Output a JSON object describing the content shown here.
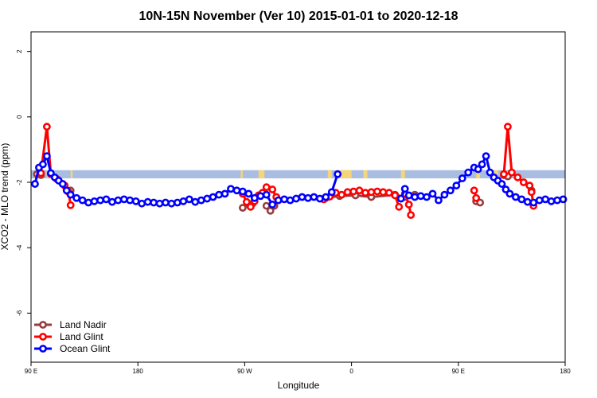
{
  "chart_data": {
    "type": "line",
    "title": "10N-15N November (Ver 10)   2015-01-01 to 2020-12-18",
    "xlabel": "Longitude",
    "ylabel": "XCO2 - MLO trend (ppm)",
    "xlim": [
      -90,
      180
    ],
    "ylim": [
      -7.5,
      2.6
    ],
    "x_ticks": [
      {
        "value": -90,
        "label": "90 E"
      },
      {
        "value": -36,
        "label": "180"
      },
      {
        "value": 18,
        "label": "90 W"
      },
      {
        "value": 72,
        "label": "0"
      },
      {
        "value": 126,
        "label": "90 E"
      },
      {
        "value": 180,
        "label": "180"
      }
    ],
    "y_ticks": [
      {
        "value": 2,
        "label": "2"
      },
      {
        "value": 0,
        "label": "0"
      },
      {
        "value": -2,
        "label": "-2"
      },
      {
        "value": -4,
        "label": "-4"
      },
      {
        "value": -6,
        "label": "-6"
      }
    ],
    "land_band": {
      "y_top": -1.63,
      "y_bottom": -1.88,
      "color": "#a9bde0",
      "land_color": "#f6d57a",
      "land_x": [
        [
          -82,
          -80
        ],
        [
          -70,
          -69
        ],
        [
          16,
          17
        ],
        [
          25,
          28
        ],
        [
          60,
          62
        ],
        [
          64,
          72
        ],
        [
          78,
          80
        ],
        [
          97,
          99
        ],
        [
          135,
          137
        ],
        [
          144,
          146
        ]
      ]
    },
    "legend": {
      "position": "bottom-left",
      "entries": [
        "Land Nadir",
        "Land Glint",
        "Ocean Glint"
      ]
    },
    "series": [
      {
        "name": "Land Nadir",
        "color": "#983b3b",
        "segments": [
          [
            [
              -87,
              -1.75
            ],
            [
              -85,
              -1.78
            ]
          ],
          [
            [
              -70,
              -2.25
            ]
          ],
          [
            [
              17,
              -2.78
            ],
            [
              20,
              -2.68
            ],
            [
              22,
              -2.65
            ]
          ],
          [
            [
              29,
              -2.72
            ],
            [
              31,
              -2.87
            ],
            [
              33,
              -2.72
            ]
          ],
          [
            [
              59,
              -2.48
            ],
            [
              66,
              -2.42
            ],
            [
              74,
              -2.4
            ],
            [
              82,
              -2.45
            ],
            [
              94,
              -2.38
            ],
            [
              99,
              -2.45
            ],
            [
              104,
              -2.38
            ]
          ],
          [
            [
              135,
              -2.58
            ],
            [
              137,
              -2.62
            ]
          ],
          [
            [
              149,
              -1.78
            ],
            [
              151,
              -1.82
            ]
          ],
          [
            [
              163,
              -2.25
            ]
          ]
        ]
      },
      {
        "name": "Land Glint",
        "color": "#ff0000",
        "segments": [
          [
            [
              -85,
              -1.72
            ],
            [
              -82,
              -0.3
            ],
            [
              -80,
              -1.75
            ],
            [
              -77,
              -1.9
            ],
            [
              -73,
              -2.1
            ],
            [
              -71,
              -2.3
            ],
            [
              -70,
              -2.7
            ]
          ],
          [
            [
              17,
              -2.35
            ],
            [
              19,
              -2.6
            ],
            [
              21,
              -2.75
            ],
            [
              23,
              -2.58
            ],
            [
              25,
              -2.4
            ],
            [
              27,
              -2.32
            ],
            [
              29,
              -2.15
            ],
            [
              32,
              -2.22
            ],
            [
              34,
              -2.45
            ]
          ],
          [
            [
              58,
              -2.52
            ],
            [
              61,
              -2.44
            ],
            [
              64,
              -2.32
            ],
            [
              67,
              -2.38
            ],
            [
              70,
              -2.3
            ],
            [
              73,
              -2.28
            ],
            [
              76,
              -2.25
            ],
            [
              79,
              -2.32
            ],
            [
              82,
              -2.3
            ],
            [
              85,
              -2.28
            ],
            [
              88,
              -2.3
            ],
            [
              91,
              -2.32
            ],
            [
              94,
              -2.4
            ],
            [
              96,
              -2.75
            ]
          ],
          [
            [
              99,
              -2.35
            ],
            [
              101,
              -2.68
            ],
            [
              102,
              -3.0
            ]
          ],
          [
            [
              134,
              -2.25
            ],
            [
              135,
              -2.48
            ]
          ],
          [
            [
              149,
              -1.75
            ],
            [
              151,
              -0.3
            ],
            [
              153,
              -1.7
            ],
            [
              156,
              -1.85
            ],
            [
              159,
              -2.0
            ],
            [
              162,
              -2.1
            ],
            [
              163,
              -2.3
            ],
            [
              164,
              -2.72
            ]
          ]
        ]
      },
      {
        "name": "Ocean Glint",
        "color": "#0000ff",
        "segments": [
          [
            [
              -88,
              -2.05
            ],
            [
              -86,
              -1.55
            ],
            [
              -84,
              -1.45
            ],
            [
              -82,
              -1.2
            ],
            [
              -80,
              -1.72
            ],
            [
              -78,
              -1.85
            ],
            [
              -76,
              -1.95
            ],
            [
              -74,
              -2.05
            ],
            [
              -72,
              -2.25
            ],
            [
              -70,
              -2.38
            ],
            [
              -67,
              -2.48
            ],
            [
              -64,
              -2.55
            ],
            [
              -61,
              -2.62
            ],
            [
              -58,
              -2.58
            ],
            [
              -55,
              -2.55
            ],
            [
              -52,
              -2.52
            ],
            [
              -49,
              -2.6
            ],
            [
              -46,
              -2.55
            ],
            [
              -43,
              -2.52
            ],
            [
              -40,
              -2.55
            ],
            [
              -37,
              -2.58
            ],
            [
              -34,
              -2.65
            ],
            [
              -31,
              -2.6
            ],
            [
              -28,
              -2.62
            ],
            [
              -25,
              -2.65
            ],
            [
              -22,
              -2.62
            ],
            [
              -19,
              -2.65
            ],
            [
              -16,
              -2.62
            ],
            [
              -13,
              -2.58
            ],
            [
              -10,
              -2.52
            ],
            [
              -7,
              -2.6
            ],
            [
              -4,
              -2.55
            ],
            [
              -1,
              -2.5
            ],
            [
              2,
              -2.45
            ],
            [
              5,
              -2.38
            ],
            [
              8,
              -2.35
            ],
            [
              11,
              -2.2
            ],
            [
              14,
              -2.25
            ],
            [
              17,
              -2.28
            ],
            [
              20,
              -2.35
            ],
            [
              23,
              -2.48
            ],
            [
              26,
              -2.42
            ],
            [
              29,
              -2.38
            ],
            [
              32,
              -2.68
            ],
            [
              35,
              -2.55
            ],
            [
              38,
              -2.52
            ],
            [
              41,
              -2.55
            ],
            [
              44,
              -2.5
            ],
            [
              47,
              -2.45
            ],
            [
              50,
              -2.48
            ],
            [
              53,
              -2.45
            ],
            [
              56,
              -2.5
            ],
            [
              59,
              -2.45
            ],
            [
              62,
              -2.3
            ],
            [
              65,
              -1.75
            ]
          ],
          [
            [
              97,
              -2.5
            ],
            [
              99,
              -2.2
            ],
            [
              101,
              -2.4
            ],
            [
              104,
              -2.45
            ],
            [
              107,
              -2.42
            ],
            [
              110,
              -2.45
            ],
            [
              113,
              -2.35
            ],
            [
              116,
              -2.55
            ],
            [
              119,
              -2.38
            ],
            [
              122,
              -2.25
            ],
            [
              125,
              -2.1
            ],
            [
              128,
              -1.88
            ],
            [
              131,
              -1.7
            ],
            [
              134,
              -1.55
            ],
            [
              136,
              -1.6
            ],
            [
              138,
              -1.45
            ],
            [
              140,
              -1.2
            ],
            [
              142,
              -1.7
            ],
            [
              144,
              -1.85
            ],
            [
              146,
              -1.95
            ],
            [
              148,
              -2.05
            ],
            [
              150,
              -2.22
            ],
            [
              152,
              -2.35
            ],
            [
              155,
              -2.45
            ],
            [
              158,
              -2.52
            ],
            [
              161,
              -2.6
            ],
            [
              164,
              -2.62
            ],
            [
              167,
              -2.55
            ],
            [
              170,
              -2.52
            ],
            [
              173,
              -2.58
            ],
            [
              176,
              -2.55
            ],
            [
              179,
              -2.52
            ]
          ]
        ]
      }
    ]
  }
}
